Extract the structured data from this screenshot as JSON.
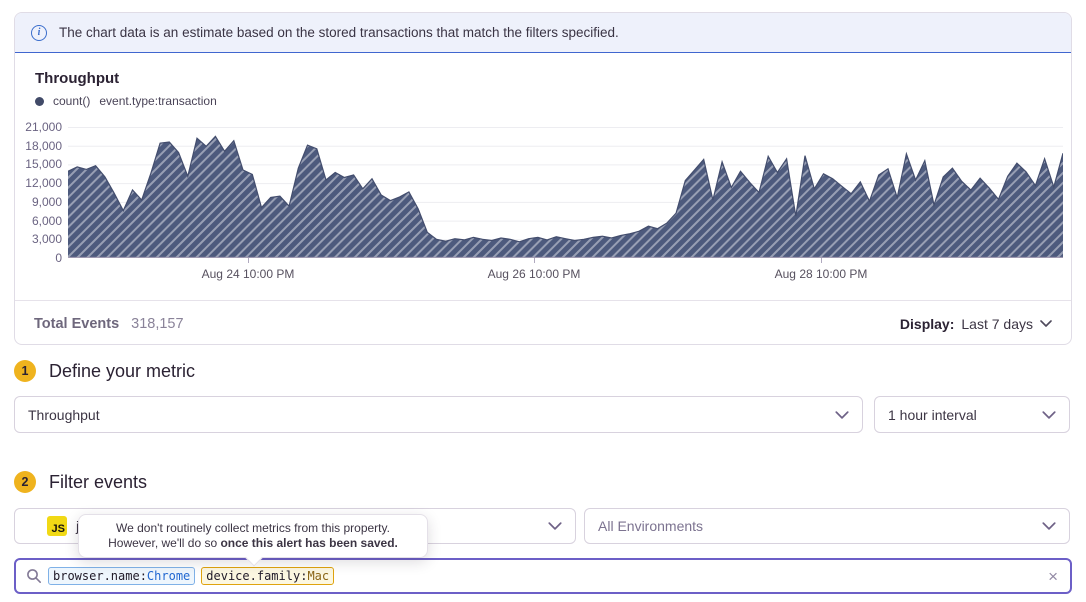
{
  "banner": {
    "text": "The chart data is an estimate based on the stored transactions that match the filters specified."
  },
  "chart": {
    "title": "Throughput",
    "legend": {
      "metric": "count()",
      "filter": "event.type:transaction"
    },
    "y_ticks": [
      "21,000",
      "18,000",
      "15,000",
      "12,000",
      "9,000",
      "6,000",
      "3,000",
      "0"
    ],
    "x_ticks": [
      "Aug 24 10:00 PM",
      "Aug 26 10:00 PM",
      "Aug 28 10:00 PM"
    ]
  },
  "chart_data": {
    "type": "area",
    "title": "Throughput",
    "ylabel": "count()",
    "ylim": [
      0,
      21000
    ],
    "y_tick_step": 3000,
    "grid": "horizontal",
    "fill_style": "diagonal-hatch",
    "interval": "1 hour",
    "x_tick_labels": [
      "Aug 24 10:00 PM",
      "Aug 26 10:00 PM",
      "Aug 28 10:00 PM"
    ],
    "total_events": 318157,
    "series": [
      {
        "name": "count() event.type:transaction",
        "values": [
          13900,
          14600,
          14200,
          14800,
          13000,
          10400,
          7600,
          10900,
          9300,
          13600,
          18400,
          18600,
          16900,
          13100,
          19200,
          17900,
          19500,
          17100,
          18800,
          14100,
          13400,
          8100,
          9700,
          9900,
          8300,
          14400,
          18100,
          17500,
          12500,
          13700,
          12900,
          13300,
          11100,
          12700,
          10100,
          9200,
          9800,
          10600,
          7900,
          4100,
          3000,
          2700,
          3100,
          2900,
          3300,
          3000,
          2800,
          3200,
          3000,
          2600,
          3100,
          3300,
          2900,
          3400,
          3100,
          2800,
          3000,
          3300,
          3500,
          3200,
          3600,
          3900,
          4300,
          5100,
          4700,
          5600,
          7200,
          12400,
          14100,
          15800,
          9300,
          15400,
          11300,
          13900,
          12100,
          10500,
          16300,
          13700,
          15900,
          6700,
          16400,
          11100,
          13500,
          12700,
          11500,
          10300,
          12200,
          9100,
          13300,
          14300,
          9700,
          16700,
          12500,
          15600,
          8500,
          13000,
          14400,
          12300,
          10900,
          12800,
          11200,
          9400,
          13100,
          15200,
          13800,
          11600,
          15900,
          11400,
          16800
        ]
      }
    ]
  },
  "summary": {
    "total_events_label": "Total Events",
    "total_events_value": "318,157",
    "display_label": "Display:",
    "display_value": "Last 7 days"
  },
  "sections": {
    "metric": {
      "step": "1",
      "title": "Define your metric",
      "metric_value": "Throughput",
      "interval_value": "1 hour interval"
    },
    "filter": {
      "step": "2",
      "title": "Filter events",
      "project_badge": "JS",
      "project_label": "j",
      "environment_value": "All Environments"
    }
  },
  "tooltip": {
    "line1": "We don't routinely collect metrics from this property.",
    "line2_normal": "However, we'll do so ",
    "line2_bold": "once this alert has been saved."
  },
  "search": {
    "tokens": [
      {
        "key": "browser.name:",
        "value": "Chrome"
      },
      {
        "key": "device.family:",
        "value": "Mac"
      }
    ],
    "clear_icon": "×"
  },
  "icons": {
    "info": "i"
  },
  "colors": {
    "banner_bg": "#eef1fb",
    "banner_border": "#4066cf",
    "accent_purple": "#6c5fc7",
    "step_badge": "#efb31e",
    "chart_fill": "#4d5a7d",
    "chart_stroke": "#434d6d",
    "token_blue_border": "#7fb1e7",
    "token_blue_value": "#2268d1",
    "token_yellow_border": "#dfa30e",
    "token_yellow_value": "#8a6516",
    "js_badge": "#f1d915"
  }
}
